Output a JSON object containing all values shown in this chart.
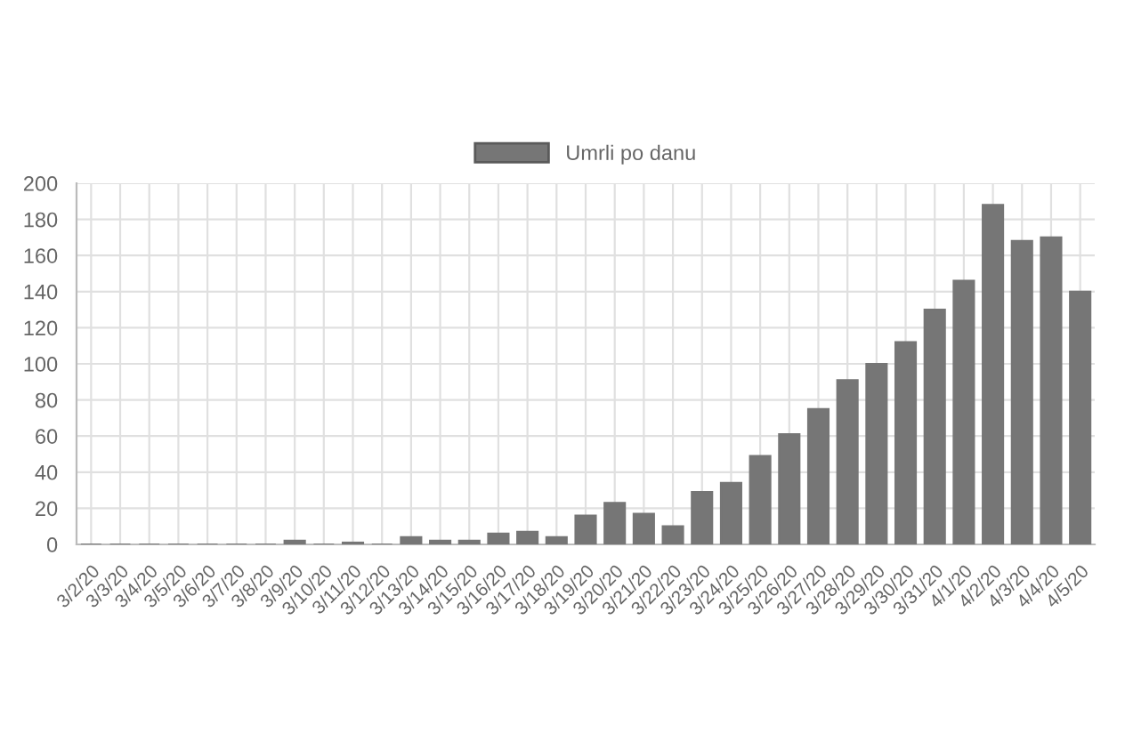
{
  "chart_data": {
    "type": "bar",
    "categories": [
      "3/2/20",
      "3/3/20",
      "3/4/20",
      "3/5/20",
      "3/6/20",
      "3/7/20",
      "3/8/20",
      "3/9/20",
      "3/10/20",
      "3/11/20",
      "3/12/20",
      "3/13/20",
      "3/14/20",
      "3/15/20",
      "3/16/20",
      "3/17/20",
      "3/18/20",
      "3/19/20",
      "3/20/20",
      "3/21/20",
      "3/22/20",
      "3/23/20",
      "3/24/20",
      "3/25/20",
      "3/26/20",
      "3/27/20",
      "3/28/20",
      "3/29/20",
      "3/30/20",
      "3/31/20",
      "4/1/20",
      "4/2/20",
      "4/3/20",
      "4/4/20",
      "4/5/20"
    ],
    "series": [
      {
        "name": "Umrli po danu",
        "color": "#767676",
        "values": [
          0,
          0,
          0,
          0,
          0,
          0,
          0,
          2,
          0,
          1,
          0,
          4,
          2,
          2,
          6,
          7,
          4,
          16,
          23,
          17,
          10,
          29,
          34,
          49,
          61,
          75,
          91,
          100,
          112,
          130,
          146,
          188,
          168,
          170,
          140
        ]
      }
    ],
    "ylim": [
      0,
      200
    ],
    "yticks": [
      0,
      20,
      40,
      60,
      80,
      100,
      120,
      140,
      160,
      180,
      200
    ],
    "grid": true,
    "legend": "top"
  }
}
